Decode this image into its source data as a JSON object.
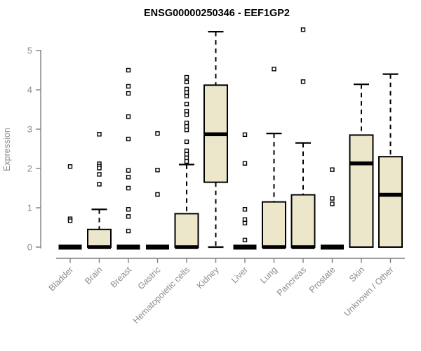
{
  "title": "ENSG00000250346 - EEF1GP2",
  "chart_data": {
    "type": "boxplot",
    "title": "ENSG00000250346 - EEF1GP2",
    "xlabel": "",
    "ylabel": "Expression",
    "ylim": [
      0,
      5.6
    ],
    "yticks": [
      0,
      1,
      2,
      3,
      4,
      5
    ],
    "grid": false,
    "legend": "none",
    "box_fill": "#ece7cb",
    "box_stroke": "#000000",
    "median_color": "#000000",
    "axis_color": "#7f7f7f",
    "tick_label_color": "#8c8c8c",
    "categories": [
      "Bladder",
      "Brain",
      "Breast",
      "Gastric",
      "Hematopoietic cells",
      "Kidney",
      "Liver",
      "Lung",
      "Pancreas",
      "Prostate",
      "Skin",
      "Unknown / Other"
    ],
    "series": [
      {
        "label": "Bladder",
        "q1": 0,
        "median": 0,
        "q3": 0,
        "whisker_low": 0,
        "whisker_high": 0,
        "outliers": [
          2.05,
          0.72,
          0.67
        ]
      },
      {
        "label": "Brain",
        "q1": 0,
        "median": 0,
        "q3": 0.45,
        "whisker_low": 0,
        "whisker_high": 0.96,
        "outliers": [
          2.87,
          2.12,
          2.06,
          2.01,
          1.85,
          1.6
        ]
      },
      {
        "label": "Breast",
        "q1": 0,
        "median": 0,
        "q3": 0,
        "whisker_low": 0,
        "whisker_high": 0,
        "outliers": [
          4.5,
          4.09,
          3.91,
          3.32,
          2.75,
          1.95,
          1.78,
          1.5,
          0.96,
          0.78,
          0.41
        ]
      },
      {
        "label": "Gastric",
        "q1": 0,
        "median": 0,
        "q3": 0,
        "whisker_low": 0,
        "whisker_high": 0,
        "outliers": [
          2.89,
          1.96,
          1.34
        ]
      },
      {
        "label": "Hematopoietic cells",
        "q1": 0,
        "median": 0,
        "q3": 0.85,
        "whisker_low": 0,
        "whisker_high": 2.1,
        "outliers": [
          4.32,
          4.2,
          4.02,
          3.93,
          3.84,
          3.64,
          3.46,
          3.37,
          3.16,
          3.07,
          2.98,
          2.68,
          2.45,
          2.36,
          2.27,
          2.18
        ]
      },
      {
        "label": "Kidney",
        "q1": 1.65,
        "median": 2.87,
        "q3": 4.12,
        "whisker_low": 0,
        "whisker_high": 5.48,
        "outliers": []
      },
      {
        "label": "Liver",
        "q1": 0,
        "median": 0,
        "q3": 0,
        "whisker_low": 0,
        "whisker_high": 0,
        "outliers": [
          2.86,
          2.13,
          0.96,
          0.7,
          0.61,
          0.18
        ]
      },
      {
        "label": "Lung",
        "q1": 0,
        "median": 0,
        "q3": 1.15,
        "whisker_low": 0,
        "whisker_high": 2.89,
        "outliers": [
          4.53
        ]
      },
      {
        "label": "Pancreas",
        "q1": 0,
        "median": 0,
        "q3": 1.33,
        "whisker_low": 0,
        "whisker_high": 2.65,
        "outliers": [
          5.53,
          4.21
        ]
      },
      {
        "label": "Prostate",
        "q1": 0,
        "median": 0,
        "q3": 0,
        "whisker_low": 0,
        "whisker_high": 0,
        "outliers": [
          1.97,
          1.24,
          1.1
        ]
      },
      {
        "label": "Skin",
        "q1": 0,
        "median": 2.13,
        "q3": 2.85,
        "whisker_low": 0,
        "whisker_high": 4.14,
        "outliers": []
      },
      {
        "label": "Unknown / Other",
        "q1": 0,
        "median": 1.33,
        "q3": 2.3,
        "whisker_low": 0,
        "whisker_high": 4.4,
        "outliers": []
      }
    ]
  }
}
